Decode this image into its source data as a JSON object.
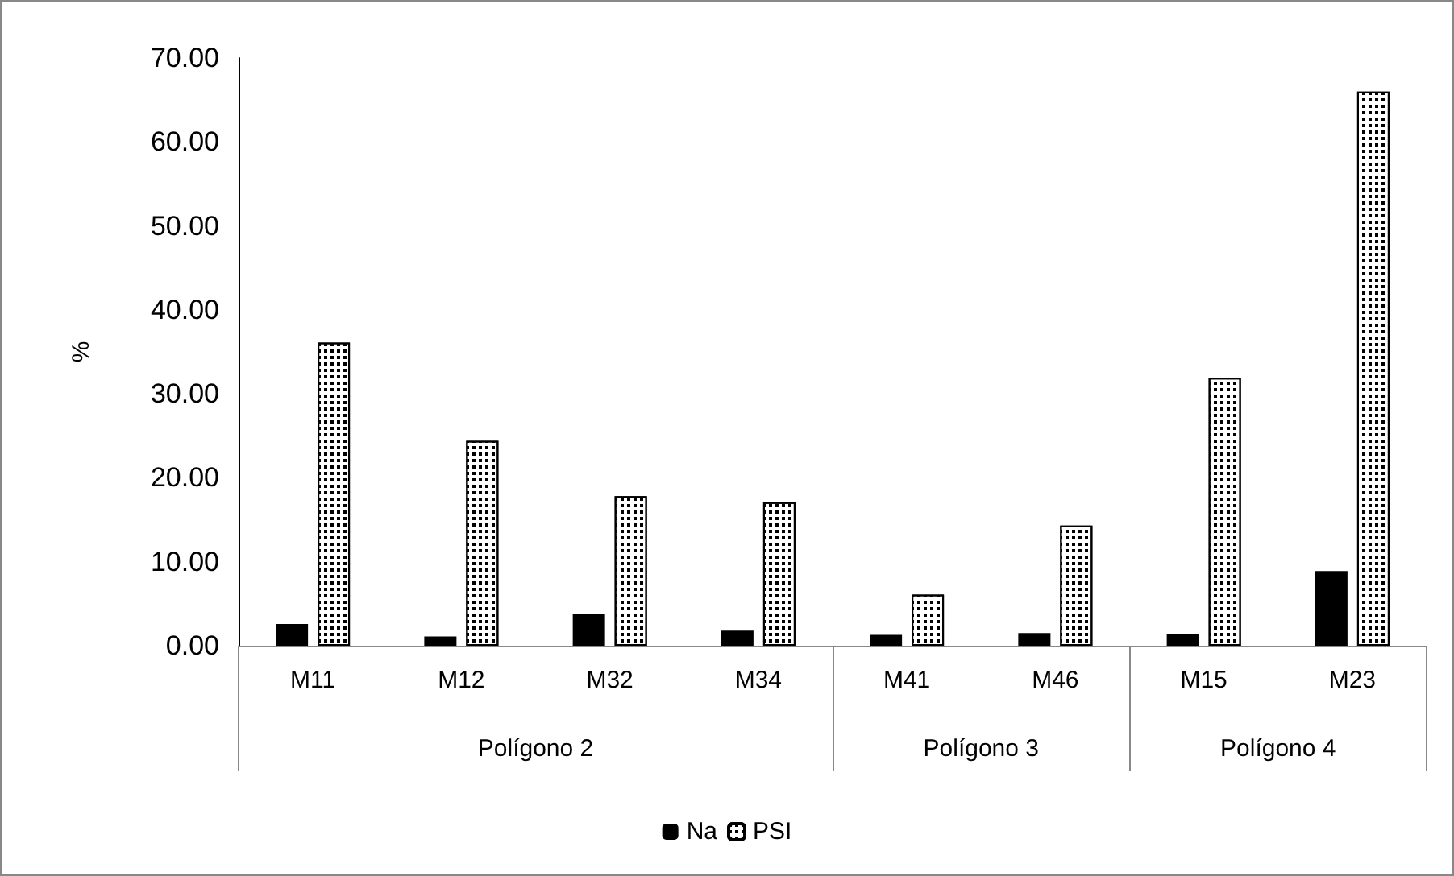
{
  "chart_data": {
    "type": "bar",
    "ylabel": "%",
    "categories": [
      "M11",
      "M12",
      "M32",
      "M34",
      "M41",
      "M46",
      "M15",
      "M23"
    ],
    "series": [
      {
        "name": "Na",
        "color": "#000000",
        "values": [
          2.6,
          1.1,
          3.8,
          1.8,
          1.3,
          1.5,
          1.4,
          8.9
        ]
      },
      {
        "name": "PSI",
        "color": "#000000",
        "values": [
          36.1,
          24.4,
          17.8,
          17.1,
          6.1,
          14.3,
          31.9,
          66.0
        ]
      }
    ],
    "ylim": [
      0,
      70
    ],
    "yticks": [
      {
        "value": 0,
        "label": "0.00"
      },
      {
        "value": 10,
        "label": "10.00"
      },
      {
        "value": 20,
        "label": "20.00"
      },
      {
        "value": 30,
        "label": "30.00"
      },
      {
        "value": 40,
        "label": "40.00"
      },
      {
        "value": 50,
        "label": "50.00"
      },
      {
        "value": 60,
        "label": "60.00"
      },
      {
        "value": 70,
        "label": "70.00"
      }
    ],
    "annotations": [
      "Polígono 2",
      "Polígono 3",
      "Polígono 4"
    ],
    "legend": "bottom",
    "grid": false
  }
}
